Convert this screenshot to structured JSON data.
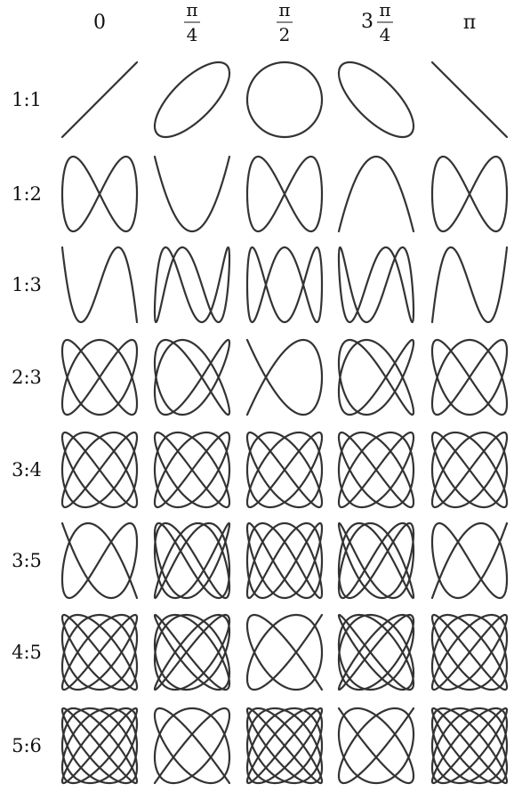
{
  "figure": {
    "phase_headers": [
      {
        "type": "plain",
        "text": "0"
      },
      {
        "type": "fraction",
        "prefix": "",
        "num": "π",
        "den": "4"
      },
      {
        "type": "fraction",
        "prefix": "",
        "num": "π",
        "den": "2"
      },
      {
        "type": "fraction",
        "prefix": "3",
        "num": "π",
        "den": "4"
      },
      {
        "type": "plain",
        "text": "π"
      }
    ],
    "phase_values": [
      0,
      0.25,
      0.5,
      0.75,
      1
    ],
    "ratios": [
      {
        "label": "1:1",
        "a": 1,
        "b": 1
      },
      {
        "label": "1:2",
        "a": 1,
        "b": 2
      },
      {
        "label": "1:3",
        "a": 1,
        "b": 3
      },
      {
        "label": "2:3",
        "a": 2,
        "b": 3
      },
      {
        "label": "3:4",
        "a": 3,
        "b": 4
      },
      {
        "label": "3:5",
        "a": 3,
        "b": 5
      },
      {
        "label": "4:5",
        "a": 4,
        "b": 5
      },
      {
        "label": "5:6",
        "a": 5,
        "b": 6
      }
    ],
    "curve_color": "#333333"
  }
}
